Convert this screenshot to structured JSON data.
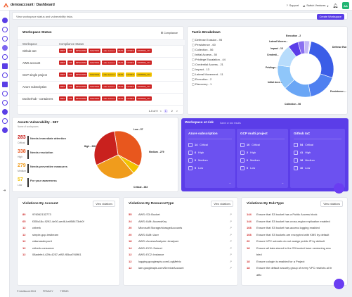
{
  "topbar": {
    "breadcrumb_org": "demoaccount",
    "breadcrumb_sep": "/",
    "breadcrumb_page": "Dashboard",
    "support": "Support",
    "switch_ventures": "Switch Ventures",
    "avatar_initials": "AA"
  },
  "subbar": {
    "text": "View workspace status and vulnerability risks.",
    "create_button": "Create Workspace"
  },
  "workspace_status": {
    "title": "Workspace Status",
    "compliance_link": "Compliance",
    "col_workspace": "Workspace",
    "col_compliance": "Compliance Status",
    "rows": [
      {
        "name": "Github IaC",
        "tags": [
          "RMiT",
          "CIS",
          "DPSAORM",
          "ISO27001",
          "Lake.Lesson",
          "NIAS",
          "NYDFS",
          "NIST800_171"
        ]
      },
      {
        "name": "AWS account",
        "tags": [
          "RMiT",
          "CIS",
          "DPSAORM",
          "ISO27001",
          "Lake.Lesson",
          "NIAS",
          "NYDFS",
          "NIST800_171"
        ]
      },
      {
        "name": "GCP single project",
        "tags": [
          "RMiT",
          "CIS",
          "DPSAORM",
          "ISO27001",
          "Lake.Lesson",
          "NIAS",
          "NYDFS",
          "NIST800_171"
        ]
      },
      {
        "name": "Azure subscription",
        "tags": [
          "RMiT",
          "CIS",
          "DPSAORM",
          "ISO27001",
          "Lake.Lesson",
          "NIAS",
          "NYDFS",
          "NIST800_171"
        ]
      },
      {
        "name": "Dockerhub - containers",
        "tags": [
          "RMiT",
          "CIS",
          "DPSAORM",
          "ISO27001",
          "Lake.Lesson",
          "NIAS",
          "NYDFS",
          "NIST800_171"
        ]
      }
    ],
    "pager_range": "1-5 of 9",
    "pages": [
      "1",
      "2"
    ],
    "prev": "<",
    "next": ">"
  },
  "tactic": {
    "title": "Tactic Breakdown",
    "items": [
      "Defense Evasion - 95",
      "Persistence - 60",
      "Collection - 56",
      "Initial Access - 50",
      "Privilege Escalation - 44",
      "Credential Access - 21",
      "Impact - 13",
      "Lateral Movement - 11",
      "Execution - 2",
      "Discovery - 1"
    ],
    "donut_labels": {
      "execution": "Execution - 2",
      "lateral": "Lateral Movem...",
      "impact": "Impact - 13",
      "credential": "Credenti...",
      "privilege": "Privilege...",
      "initial": "Initial Acce...",
      "collection": "Collection - 56",
      "persistence": "Persistence -...",
      "defense": "Defense Evas..."
    }
  },
  "vulnerability": {
    "title": "Assets Vulnerability - 957",
    "subtitle": "Name of workspaces",
    "rows": [
      {
        "value": "283",
        "label": "Critical",
        "desc": "Needs immediate attention",
        "color": "#c9211e"
      },
      {
        "value": "338",
        "label": "High",
        "desc": "Needs resolution",
        "color": "#e8571e"
      },
      {
        "value": "279",
        "label": "Medium",
        "desc": "Needs preventive measures",
        "color": "#f09c1c"
      },
      {
        "value": "57",
        "label": "Low",
        "desc": "For your awareness",
        "color": "#f2c200"
      }
    ],
    "pie_labels": {
      "high": "High - 338",
      "low": "Low - 57",
      "medium": "Medium - 279",
      "critical": "Critical - 283"
    }
  },
  "risk": {
    "title": "Workspace at risk",
    "subtitle": "Same or low results",
    "cards": [
      {
        "title": "Azure subscription",
        "critical": "14",
        "high": "6",
        "medium": "0",
        "low": "0"
      },
      {
        "title": "GCP multi project",
        "critical": "10",
        "high": "2",
        "medium": "0",
        "low": "0"
      },
      {
        "title": "Github IaC",
        "critical": "54",
        "high": "41",
        "medium": "18",
        "low": "10"
      }
    ],
    "labels": {
      "critical": "Critical",
      "high": "High",
      "medium": "Medium",
      "low": "Low"
    }
  },
  "violations_account": {
    "title": "Violations By Account",
    "button": "View violations",
    "rows": [
      {
        "n": "80",
        "t": "976062132773"
      },
      {
        "n": "65",
        "t": "f355c18c-9292-4e30-aed6-ba958473cb0f"
      },
      {
        "n": "12",
        "t": "cirberk"
      },
      {
        "n": "12",
        "t": "simple-gcp-testbeam"
      },
      {
        "n": "12",
        "t": "cidamasterpoc1"
      },
      {
        "n": "12",
        "t": "cirberk-consumer"
      },
      {
        "n": "12",
        "t": "08adefe4-42fb-4257-af92-f65ca7f40f61"
      }
    ]
  },
  "violations_resource": {
    "title": "Violations By ResourceType",
    "button": "View violations",
    "rows": [
      {
        "n": "55",
        "t": "AWS::S3::Bucket"
      },
      {
        "n": "24",
        "t": "AWS::IAM::AccessKey"
      },
      {
        "n": "20",
        "t": "Microsoft.Storage/storageAccounts"
      },
      {
        "n": "20",
        "t": "AWS::IAM::User"
      },
      {
        "n": "18",
        "t": "AWS::AccessAnalyzer::Analyzer"
      },
      {
        "n": "14",
        "t": "AWS::EC2::Subnet"
      },
      {
        "n": "12",
        "t": "AWS::EC2::Instance"
      },
      {
        "n": "12",
        "t": "logging.googleapis.com/LogMetric"
      },
      {
        "n": "12",
        "t": "iam.googleapis.com/ServiceAccount"
      }
    ]
  },
  "violations_rule": {
    "title": "Violations By RuleType",
    "button": "View violations",
    "rows": [
      {
        "n": "144",
        "t": "Ensure that S3 bucket has a Public Access block"
      },
      {
        "n": "144",
        "t": "Ensure that S3 bucket has cross-region replication enabled"
      },
      {
        "n": "108",
        "t": "Ensure that S3 bucket has access logging enabled"
      },
      {
        "n": "108",
        "t": "Ensure that S3 buckets are encrypted with KMS by default"
      },
      {
        "n": "20",
        "t": "Ensure VPC subnets do not assign public IP by default"
      },
      {
        "n": "18",
        "t": "Ensure all data stored in the S3 bucket have versioning ena"
      },
      {
        "n": "",
        "t": "bled"
      },
      {
        "n": "18",
        "t": "Ensure cologin is enabled for a Project"
      },
      {
        "n": "18",
        "t": "Ensure the default security group of every VPC restricts all tr"
      },
      {
        "n": "",
        "t": "affic"
      }
    ]
  },
  "footer": {
    "copyright": "© Intelliwork 2024",
    "privacy": "PRIVACY",
    "terms": "TERMS"
  }
}
